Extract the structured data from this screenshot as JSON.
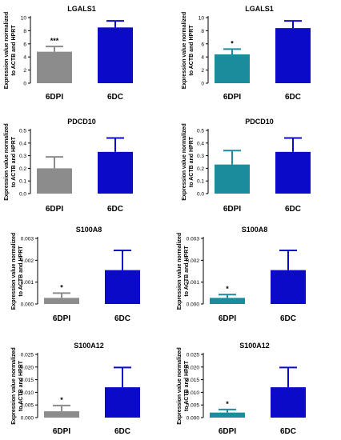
{
  "ylabel_lines": [
    "Expression value normalized",
    "to ACTB and HPRT"
  ],
  "colors": {
    "6DPI_left": "#8c8c8c",
    "6DPI_right": "#1a8c9c",
    "6DC": "#0a0ac8"
  },
  "chart_data": [
    {
      "type": "bar",
      "title": "LGALS1",
      "categories": [
        "6DPI",
        "6DC"
      ],
      "values": [
        4.8,
        8.5
      ],
      "errors": [
        0.8,
        1.0
      ],
      "ylim": [
        0,
        10
      ],
      "yticks": [
        "0",
        "2",
        "4",
        "6",
        "8",
        "10"
      ],
      "annotations": [
        "***",
        ""
      ],
      "colors": [
        "#8c8c8c",
        "#0a0ac8"
      ]
    },
    {
      "type": "bar",
      "title": "LGALS1",
      "categories": [
        "6DPI",
        "6DC"
      ],
      "values": [
        4.4,
        8.4
      ],
      "errors": [
        0.8,
        1.1
      ],
      "ylim": [
        0,
        10
      ],
      "yticks": [
        "0",
        "2",
        "4",
        "6",
        "8",
        "10"
      ],
      "annotations": [
        "*",
        ""
      ],
      "colors": [
        "#1a8c9c",
        "#0a0ac8"
      ]
    },
    {
      "type": "bar",
      "title": "PDCD10",
      "categories": [
        "6DPI",
        "6DC"
      ],
      "values": [
        0.2,
        0.33
      ],
      "errors": [
        0.09,
        0.11
      ],
      "ylim": [
        0,
        0.5
      ],
      "yticks": [
        "0.0",
        "0.1",
        "0.2",
        "0.3",
        "0.4",
        "0.5"
      ],
      "annotations": [
        "",
        ""
      ],
      "colors": [
        "#8c8c8c",
        "#0a0ac8"
      ]
    },
    {
      "type": "bar",
      "title": "PDCD10",
      "categories": [
        "6DPI",
        "6DC"
      ],
      "values": [
        0.23,
        0.33
      ],
      "errors": [
        0.11,
        0.11
      ],
      "ylim": [
        0,
        0.5
      ],
      "yticks": [
        "0.0",
        "0.1",
        "0.2",
        "0.3",
        "0.4",
        "0.5"
      ],
      "annotations": [
        "",
        ""
      ],
      "colors": [
        "#1a8c9c",
        "#0a0ac8"
      ]
    },
    {
      "type": "bar",
      "title": "S100A8",
      "categories": [
        "6DPI",
        "6DC"
      ],
      "values": [
        0.00028,
        0.00155
      ],
      "errors": [
        0.00022,
        0.0009
      ],
      "ylim": [
        0,
        0.003
      ],
      "yticks": [
        "0.000",
        "0.001",
        "0.002",
        "0.003"
      ],
      "annotations": [
        "*",
        ""
      ],
      "colors": [
        "#8c8c8c",
        "#0a0ac8"
      ]
    },
    {
      "type": "bar",
      "title": "S100A8",
      "categories": [
        "6DPI",
        "6DC"
      ],
      "values": [
        0.00028,
        0.00155
      ],
      "errors": [
        0.00015,
        0.0009
      ],
      "ylim": [
        0,
        0.003
      ],
      "yticks": [
        "0.000",
        "0.001",
        "0.002",
        "0.003"
      ],
      "annotations": [
        "*",
        ""
      ],
      "colors": [
        "#1a8c9c",
        "#0a0ac8"
      ]
    },
    {
      "type": "bar",
      "title": "S100A12",
      "categories": [
        "6DPI",
        "6DC"
      ],
      "values": [
        0.0025,
        0.012
      ],
      "errors": [
        0.0023,
        0.0078
      ],
      "ylim": [
        0,
        0.025
      ],
      "yticks": [
        "0.000",
        "0.005",
        "0.010",
        "0.015",
        "0.020",
        "0.025"
      ],
      "annotations": [
        "*",
        ""
      ],
      "colors": [
        "#8c8c8c",
        "#0a0ac8"
      ]
    },
    {
      "type": "bar",
      "title": "S100A12",
      "categories": [
        "6DPI",
        "6DC"
      ],
      "values": [
        0.002,
        0.012
      ],
      "errors": [
        0.0012,
        0.0078
      ],
      "ylim": [
        0,
        0.025
      ],
      "yticks": [
        "0.000",
        "0.005",
        "0.010",
        "0.015",
        "0.020",
        "0.025"
      ],
      "annotations": [
        "*",
        ""
      ],
      "colors": [
        "#1a8c9c",
        "#0a0ac8"
      ]
    }
  ]
}
